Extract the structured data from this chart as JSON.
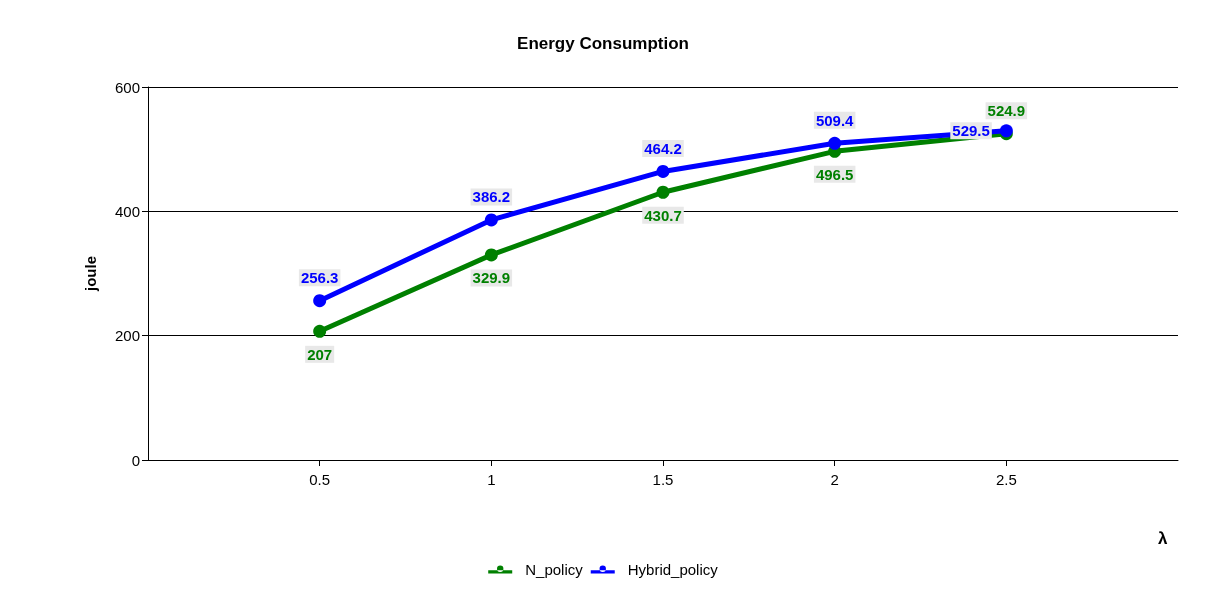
{
  "chart_data": {
    "type": "line",
    "title": "Energy Consumption",
    "xlabel": "λ",
    "ylabel": "joule",
    "x": [
      0.5,
      1,
      1.5,
      2,
      2.5
    ],
    "series": [
      {
        "name": "N_policy",
        "color": "#008000",
        "values": [
          207,
          329.9,
          430.7,
          496.5,
          524.9
        ]
      },
      {
        "name": "Hybrid_policy",
        "color": "#0000ff",
        "values": [
          256.3,
          386.2,
          464.2,
          509.4,
          529.5
        ]
      }
    ],
    "xlim": [
      0,
      3
    ],
    "xticks": [
      0.5,
      1,
      1.5,
      2,
      2.5
    ],
    "ylim": [
      0,
      600
    ],
    "yticks": [
      0,
      200,
      400,
      600
    ],
    "grid": "y",
    "legend": "bottom",
    "marker": "circle",
    "line_style": "solid",
    "data_labels": true
  }
}
